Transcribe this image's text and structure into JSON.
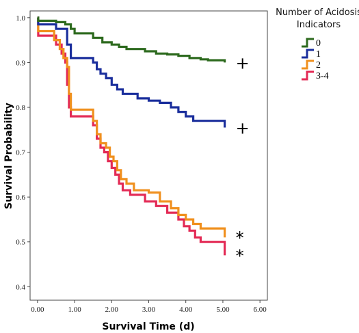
{
  "chart_data": {
    "type": "line",
    "step": true,
    "xlabel": "Survival Time (d)",
    "ylabel": "Survival Probability",
    "xlim": [
      -0.2,
      6.2
    ],
    "ylim": [
      0.37,
      1.015
    ],
    "xticks": [
      0,
      1,
      2,
      3,
      4,
      5,
      6
    ],
    "xtick_labels": [
      "0.00",
      "1.00",
      "2.00",
      "3.00",
      "4.00",
      "5.00",
      "6.00"
    ],
    "yticks": [
      0.4,
      0.5,
      0.6,
      0.7,
      0.8,
      0.9,
      1.0
    ],
    "ytick_labels": [
      "0.4",
      "0.5",
      "0.6",
      "0.7",
      "0.8",
      "0.9",
      "1.0"
    ],
    "legend": {
      "title_lines": [
        "Number of Acidosis",
        "Indicators"
      ],
      "position": "right"
    },
    "series": [
      {
        "name": "0",
        "color": "#2d6a1e",
        "marker": "+",
        "points": [
          [
            0,
            1.0
          ],
          [
            0.02,
            0.993
          ],
          [
            0.5,
            0.99
          ],
          [
            0.75,
            0.985
          ],
          [
            0.9,
            0.975
          ],
          [
            1.0,
            0.965
          ],
          [
            1.3,
            0.965
          ],
          [
            1.5,
            0.955
          ],
          [
            1.75,
            0.945
          ],
          [
            2.0,
            0.94
          ],
          [
            2.2,
            0.935
          ],
          [
            2.4,
            0.93
          ],
          [
            2.6,
            0.93
          ],
          [
            2.9,
            0.925
          ],
          [
            3.2,
            0.92
          ],
          [
            3.5,
            0.918
          ],
          [
            3.8,
            0.915
          ],
          [
            4.1,
            0.91
          ],
          [
            4.4,
            0.907
          ],
          [
            4.6,
            0.905
          ],
          [
            5.0,
            0.905
          ],
          [
            5.05,
            0.9
          ]
        ]
      },
      {
        "name": "1",
        "color": "#1a2e9c",
        "marker": "+",
        "points": [
          [
            0,
            1.0
          ],
          [
            0.02,
            0.985
          ],
          [
            0.5,
            0.975
          ],
          [
            0.8,
            0.94
          ],
          [
            0.9,
            0.91
          ],
          [
            1.5,
            0.9
          ],
          [
            1.6,
            0.885
          ],
          [
            1.7,
            0.875
          ],
          [
            1.85,
            0.865
          ],
          [
            2.0,
            0.85
          ],
          [
            2.15,
            0.84
          ],
          [
            2.3,
            0.83
          ],
          [
            2.7,
            0.82
          ],
          [
            3.0,
            0.815
          ],
          [
            3.3,
            0.81
          ],
          [
            3.6,
            0.8
          ],
          [
            3.8,
            0.79
          ],
          [
            4.0,
            0.78
          ],
          [
            4.2,
            0.77
          ],
          [
            5.0,
            0.77
          ],
          [
            5.05,
            0.755
          ]
        ]
      },
      {
        "name": "2",
        "color": "#f0901e",
        "marker": "*",
        "points": [
          [
            0,
            1.0
          ],
          [
            0.02,
            0.97
          ],
          [
            0.45,
            0.95
          ],
          [
            0.6,
            0.93
          ],
          [
            0.7,
            0.91
          ],
          [
            0.8,
            0.89
          ],
          [
            0.85,
            0.83
          ],
          [
            0.9,
            0.795
          ],
          [
            1.5,
            0.77
          ],
          [
            1.6,
            0.74
          ],
          [
            1.7,
            0.72
          ],
          [
            1.85,
            0.71
          ],
          [
            1.95,
            0.69
          ],
          [
            2.05,
            0.68
          ],
          [
            2.15,
            0.66
          ],
          [
            2.25,
            0.64
          ],
          [
            2.4,
            0.63
          ],
          [
            2.6,
            0.615
          ],
          [
            3.0,
            0.61
          ],
          [
            3.3,
            0.59
          ],
          [
            3.6,
            0.575
          ],
          [
            3.8,
            0.56
          ],
          [
            4.0,
            0.55
          ],
          [
            4.2,
            0.54
          ],
          [
            4.4,
            0.53
          ],
          [
            5.0,
            0.53
          ],
          [
            5.05,
            0.51
          ]
        ]
      },
      {
        "name": "3-4",
        "color": "#e32a55",
        "marker": "*",
        "points": [
          [
            0,
            1.0
          ],
          [
            0.02,
            0.96
          ],
          [
            0.5,
            0.94
          ],
          [
            0.65,
            0.92
          ],
          [
            0.75,
            0.9
          ],
          [
            0.8,
            0.85
          ],
          [
            0.85,
            0.8
          ],
          [
            0.9,
            0.78
          ],
          [
            1.5,
            0.76
          ],
          [
            1.6,
            0.73
          ],
          [
            1.7,
            0.71
          ],
          [
            1.8,
            0.7
          ],
          [
            1.9,
            0.68
          ],
          [
            2.0,
            0.665
          ],
          [
            2.1,
            0.65
          ],
          [
            2.2,
            0.63
          ],
          [
            2.3,
            0.615
          ],
          [
            2.5,
            0.605
          ],
          [
            2.9,
            0.59
          ],
          [
            3.2,
            0.58
          ],
          [
            3.5,
            0.565
          ],
          [
            3.8,
            0.55
          ],
          [
            3.95,
            0.535
          ],
          [
            4.1,
            0.525
          ],
          [
            4.25,
            0.51
          ],
          [
            4.4,
            0.5
          ],
          [
            5.0,
            0.5
          ],
          [
            5.05,
            0.47
          ]
        ]
      }
    ]
  }
}
